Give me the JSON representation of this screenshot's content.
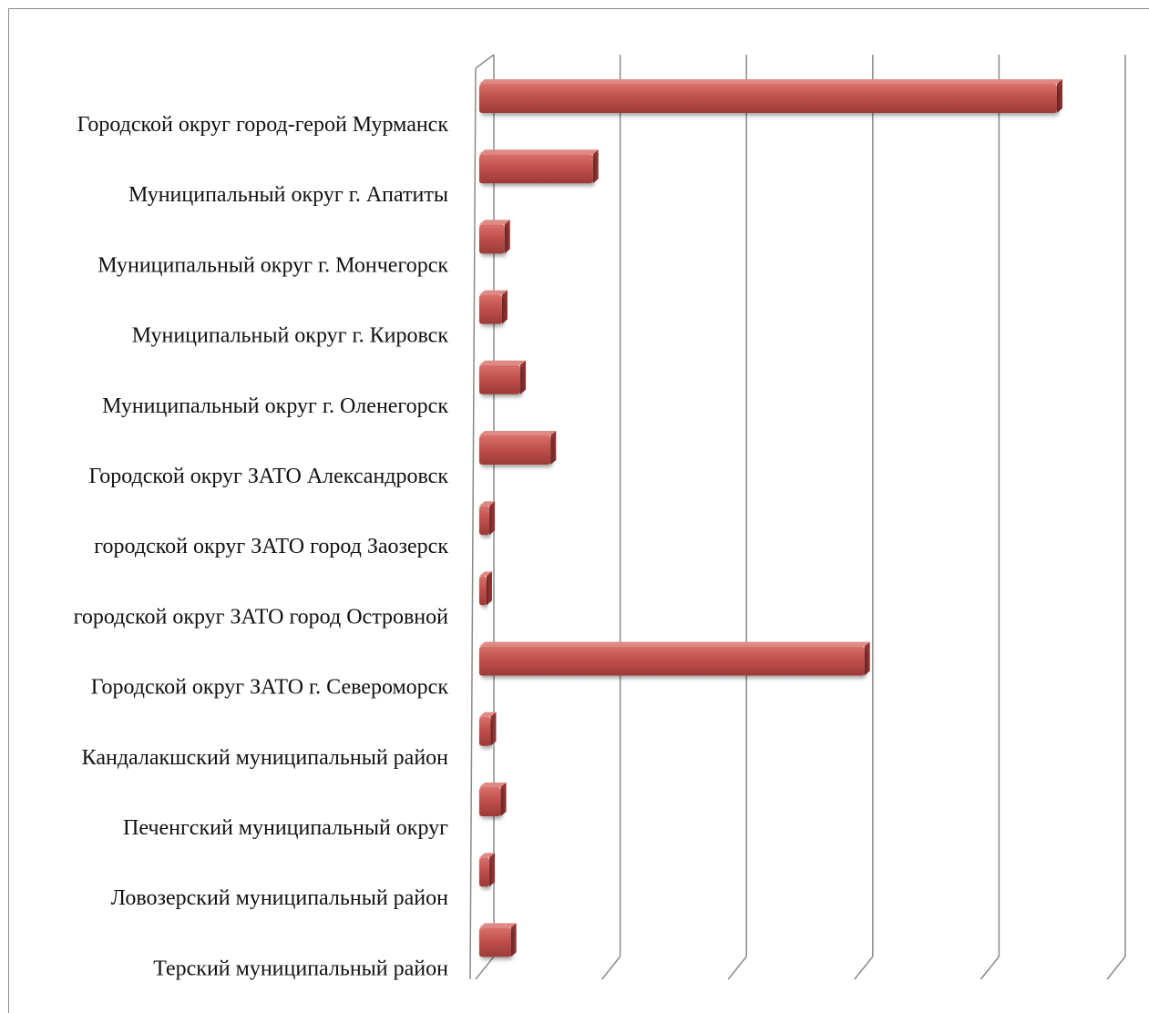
{
  "chart_data": {
    "type": "bar",
    "orientation": "horizontal",
    "style": "3d",
    "title": "",
    "xlabel": "",
    "ylabel": "",
    "grid": true,
    "bar_color": "#c0504d",
    "categories": [
      "Городской округ город-герой Мурманск",
      "Муниципальный округ г. Апатиты",
      "Муниципальный округ г. Мончегорск",
      "Муниципальный округ г. Кировск",
      "Муниципальный округ г. Оленегорск",
      "Городской округ ЗАТО Александровск",
      "городской округ ЗАТО город Заозерск",
      "городской округ ЗАТО город Островной",
      "Городской округ ЗАТО г. Североморск",
      "Кандалакшский  муниципальный район",
      "Печенгский муниципальный округ",
      "Ловозерский муниципальный район",
      "Терский муниципальный район"
    ],
    "values": [
      91.5,
      18.0,
      4.0,
      3.6,
      6.5,
      11.3,
      1.6,
      0.8,
      61.0,
      1.8,
      3.4,
      1.6,
      5.0
    ],
    "xlim": [
      0,
      100
    ],
    "gridline_count": 5
  }
}
